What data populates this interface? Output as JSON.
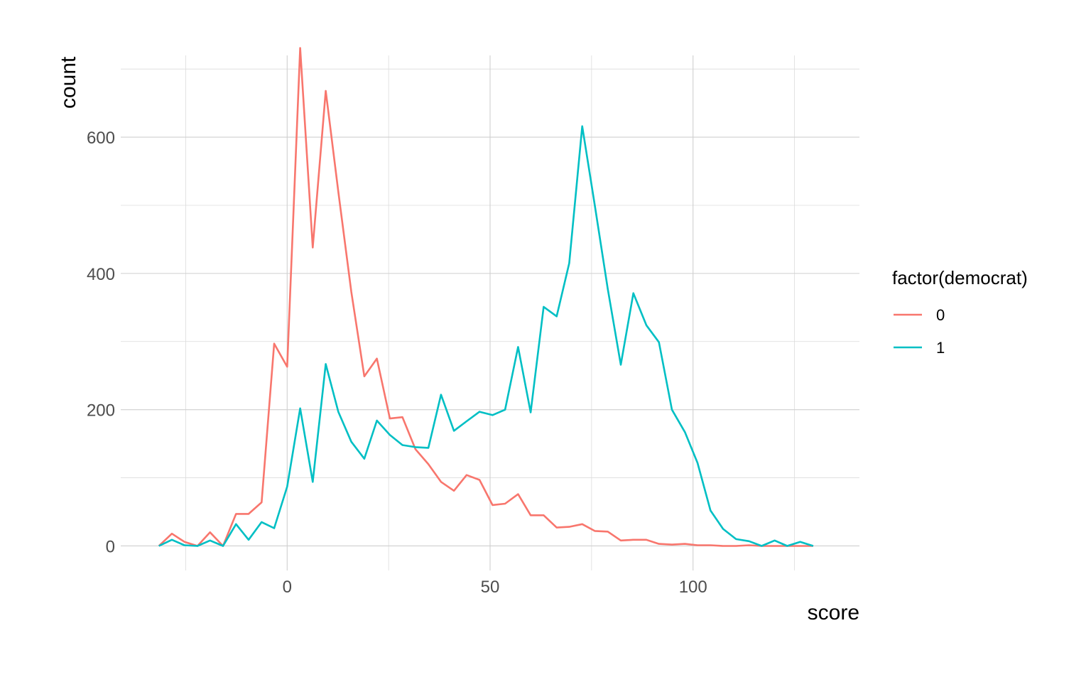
{
  "chart_data": {
    "type": "line",
    "title": "",
    "xlabel": "score",
    "ylabel": "count",
    "xlim": [
      -41,
      141
    ],
    "ylim": [
      -36,
      720
    ],
    "x_ticks": [
      0,
      50,
      100
    ],
    "x_tick_labels": [
      "0",
      "50",
      "100"
    ],
    "x_minor": [
      -25,
      25,
      75,
      125
    ],
    "y_ticks": [
      0,
      200,
      400,
      600
    ],
    "y_tick_labels": [
      "0",
      "200",
      "400",
      "600"
    ],
    "y_minor": [
      100,
      300,
      500,
      700
    ],
    "grid": true,
    "legend": {
      "title": "factor(democrat)",
      "position": "right"
    },
    "series": [
      {
        "name": "0",
        "color": "#F8766D",
        "x": [
          -31.6,
          -28.4,
          -25.3,
          -22.1,
          -19.0,
          -15.8,
          -12.6,
          -9.5,
          -6.3,
          -3.2,
          0,
          3.2,
          6.3,
          9.5,
          12.6,
          15.8,
          19.0,
          22.1,
          25.3,
          28.4,
          31.6,
          34.8,
          37.9,
          41.1,
          44.2,
          47.4,
          50.6,
          53.7,
          56.9,
          60.0,
          63.2,
          66.4,
          69.5,
          72.7,
          75.8,
          79.0,
          82.2,
          85.3,
          88.5,
          91.6,
          94.8,
          98.0,
          101.1,
          104.3,
          107.4,
          110.6,
          113.8,
          116.9,
          120.1,
          123.2,
          126.4,
          129.6
        ],
        "values": [
          0,
          18,
          6,
          0,
          20,
          0,
          47,
          47,
          64,
          297,
          263,
          731,
          438,
          668,
          520,
          373,
          249,
          275,
          187,
          189,
          142,
          120,
          94,
          81,
          104,
          97,
          60,
          62,
          76,
          45,
          45,
          27,
          28,
          32,
          22,
          21,
          8,
          9,
          9,
          3,
          2,
          3,
          1,
          1,
          0,
          0,
          1,
          0,
          0,
          0,
          0,
          0
        ]
      },
      {
        "name": "1",
        "color": "#00BFC4",
        "x": [
          -31.6,
          -28.4,
          -25.3,
          -22.1,
          -19.0,
          -15.8,
          -12.6,
          -9.5,
          -6.3,
          -3.2,
          0,
          3.2,
          6.3,
          9.5,
          12.6,
          15.8,
          19.0,
          22.1,
          25.3,
          28.4,
          31.6,
          34.8,
          37.9,
          41.1,
          44.2,
          47.4,
          50.6,
          53.7,
          56.9,
          60.0,
          63.2,
          66.4,
          69.5,
          72.7,
          75.8,
          79.0,
          82.2,
          85.3,
          88.5,
          91.6,
          94.8,
          98.0,
          101.1,
          104.3,
          107.4,
          110.6,
          113.8,
          116.9,
          120.1,
          123.2,
          126.4,
          129.6
        ],
        "values": [
          0,
          9,
          1,
          0,
          8,
          0,
          32,
          9,
          35,
          26,
          87,
          202,
          94,
          267,
          197,
          153,
          128,
          184,
          163,
          148,
          145,
          144,
          222,
          169,
          183,
          197,
          192,
          200,
          292,
          196,
          351,
          337,
          415,
          616,
          500,
          377,
          266,
          371,
          324,
          299,
          200,
          167,
          122,
          52,
          25,
          10,
          7,
          0,
          8,
          0,
          6,
          0
        ]
      }
    ]
  }
}
